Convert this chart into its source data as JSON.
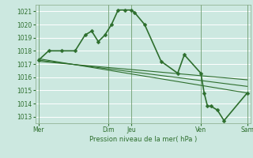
{
  "background_color": "#cce8e0",
  "grid_color": "#ffffff",
  "line_color": "#2d6e2d",
  "marker_color": "#2d6e2d",
  "xlabel": "Pression niveau de la mer( hPa )",
  "ylim": [
    1012.5,
    1021.5
  ],
  "yticks": [
    1013,
    1014,
    1015,
    1016,
    1017,
    1018,
    1019,
    1020,
    1021
  ],
  "xtick_labels": [
    "Mer",
    "",
    "",
    "Dim",
    "Jeu",
    "",
    "",
    "Ven",
    "",
    "Sam"
  ],
  "xtick_positions": [
    0,
    3.5,
    7,
    10.5,
    14,
    17.5,
    21,
    24.5,
    28,
    31.5
  ],
  "vline_positions": [
    0,
    10.5,
    14,
    24.5,
    31.5
  ],
  "series": [
    {
      "x": [
        0,
        1.5,
        3.5,
        5.5,
        7,
        8,
        9,
        10,
        11,
        12,
        13,
        14,
        14.5,
        16,
        18.5,
        21,
        22,
        24.5,
        25,
        25.5,
        26,
        27,
        28,
        31.5
      ],
      "y": [
        1017.3,
        1018.0,
        1018.0,
        1018.0,
        1019.2,
        1019.5,
        1018.7,
        1019.2,
        1020.0,
        1021.1,
        1021.1,
        1021.1,
        1020.9,
        1020.0,
        1017.2,
        1016.3,
        1017.7,
        1016.3,
        1014.8,
        1013.8,
        1013.8,
        1013.5,
        1012.7,
        1014.8
      ],
      "linewidth": 1.2,
      "marker": "D",
      "markersize": 2.5
    },
    {
      "x": [
        0,
        31.5
      ],
      "y": [
        1017.4,
        1014.8
      ],
      "linewidth": 0.8,
      "marker": null
    },
    {
      "x": [
        0,
        31.5
      ],
      "y": [
        1017.3,
        1015.3
      ],
      "linewidth": 0.8,
      "marker": null
    },
    {
      "x": [
        0,
        31.5
      ],
      "y": [
        1017.2,
        1015.8
      ],
      "linewidth": 0.8,
      "marker": null
    }
  ]
}
